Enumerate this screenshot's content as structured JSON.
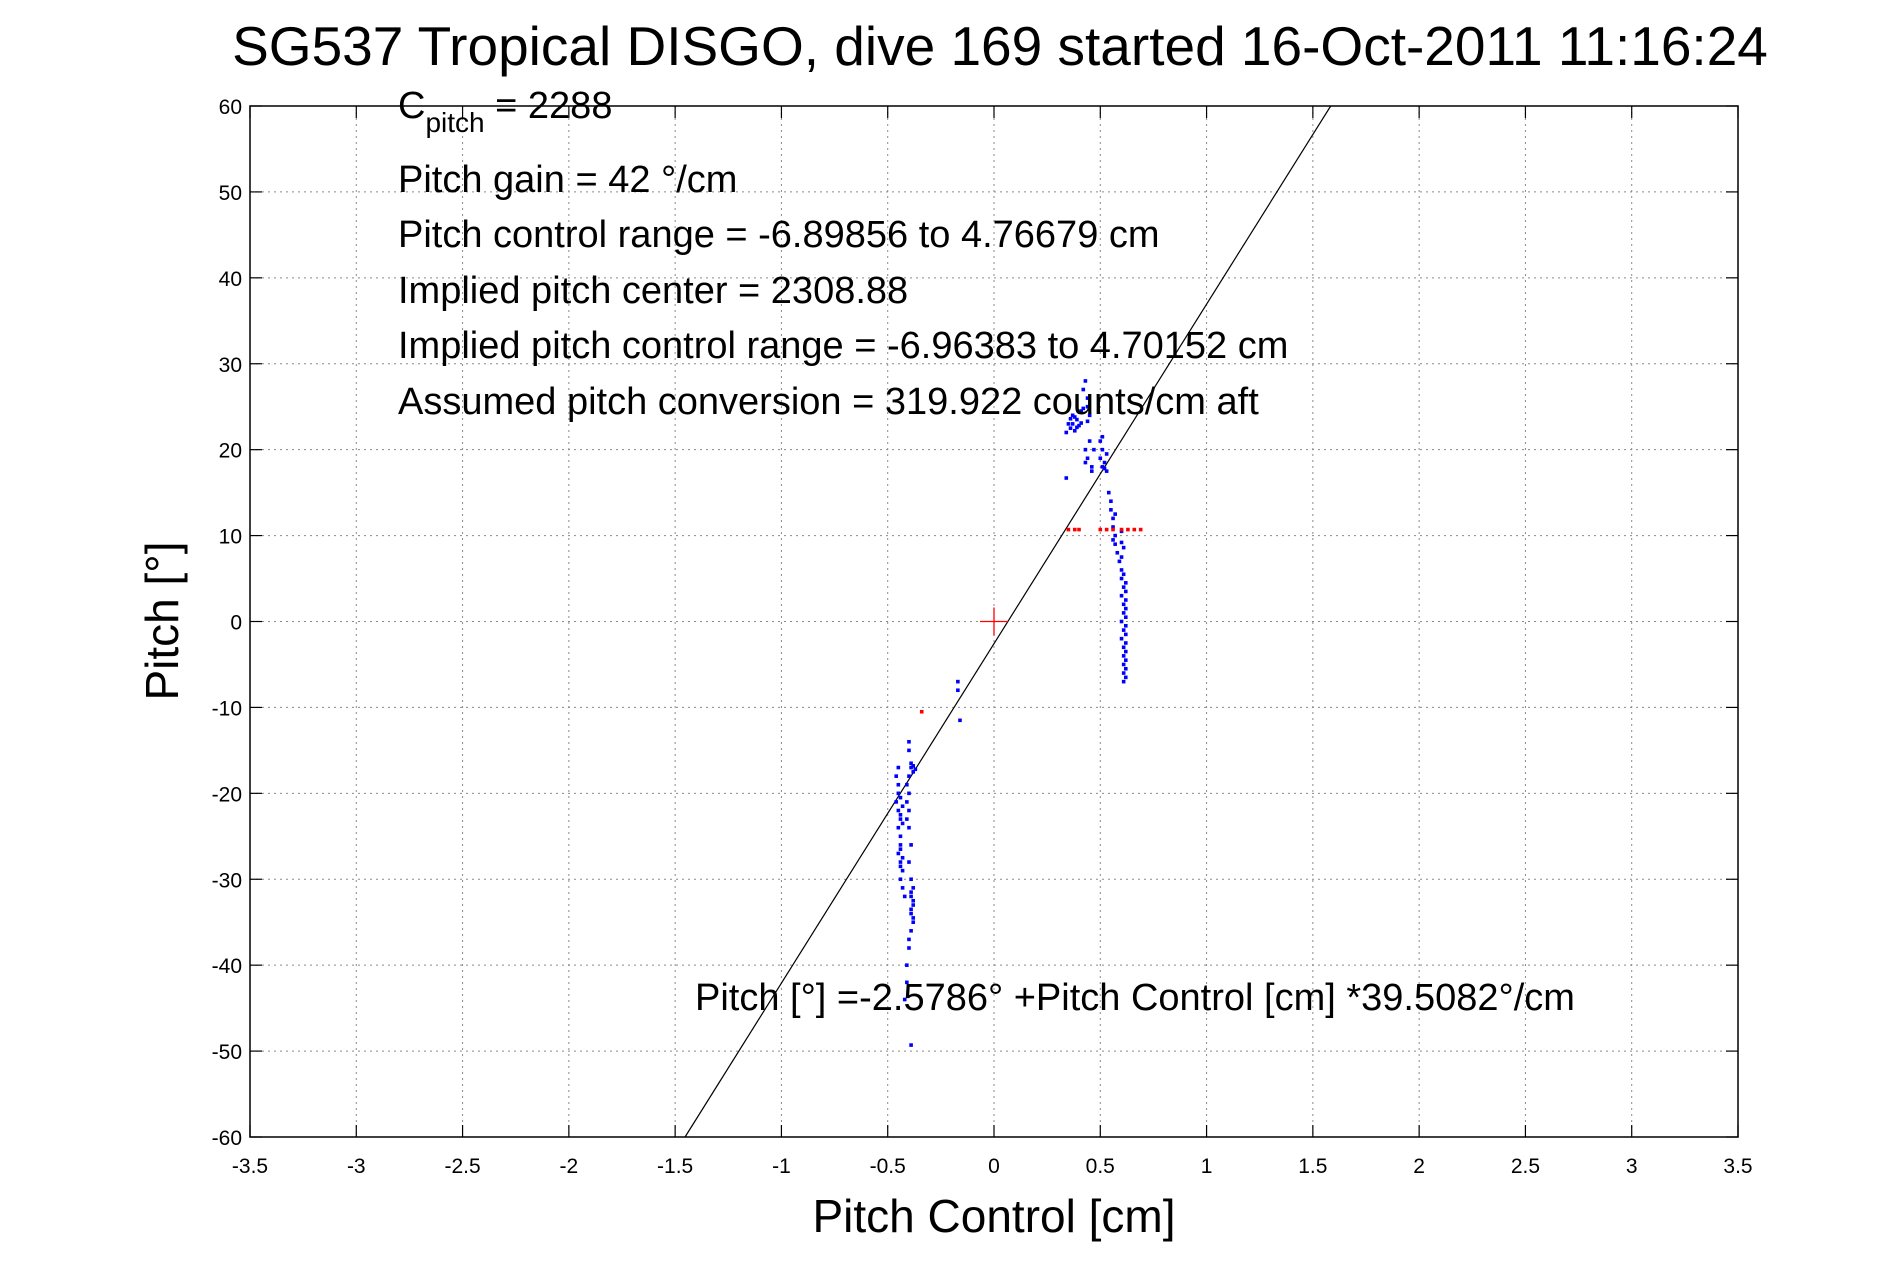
{
  "chart_data": {
    "type": "scatter",
    "title": "SG537 Tropical DISGO, dive 169 started 16-Oct-2011 11:16:24",
    "xlabel": "Pitch Control [cm]",
    "ylabel": "Pitch [°]",
    "xlim": [
      -3.5,
      3.5
    ],
    "ylim": [
      -60,
      60
    ],
    "xticks": [
      -3.5,
      -3,
      -2.5,
      -2,
      -1.5,
      -1,
      -0.5,
      0,
      0.5,
      1,
      1.5,
      2,
      2.5,
      3,
      3.5
    ],
    "yticks": [
      -60,
      -50,
      -40,
      -30,
      -20,
      -10,
      0,
      10,
      20,
      30,
      40,
      50,
      60
    ],
    "xtick_labels": [
      "-3.5",
      "-3",
      "-2.5",
      "-2",
      "-1.5",
      "-1",
      "-0.5",
      "0",
      "0.5",
      "1",
      "1.5",
      "2",
      "2.5",
      "3",
      "3.5"
    ],
    "ytick_labels": [
      "-60",
      "-50",
      "-40",
      "-30",
      "-20",
      "-10",
      "0",
      "10",
      "20",
      "30",
      "40",
      "50",
      "60"
    ],
    "grid": true,
    "annotations": {
      "c_pitch_main": "C",
      "c_pitch_sub": "pitch",
      "c_pitch_value": " = 2288",
      "pitch_gain": "Pitch gain = 42 °/cm",
      "pitch_control_range": "Pitch control range = -6.89856 to 4.76679 cm",
      "implied_pitch_center": "Implied pitch center = 2308.88",
      "implied_pitch_control_range": "Implied pitch control range = -6.96383 to 4.70152 cm",
      "assumed_pitch_conversion": "Assumed pitch conversion = 319.922 counts/cm aft",
      "fit_equation": "Pitch [°] =-2.5786° +Pitch Control [cm] *39.5082°/cm"
    },
    "fit_line": {
      "intercept": -2.5786,
      "slope": 39.5082,
      "color": "#000000"
    },
    "center_marker": {
      "x": 0,
      "y": 0,
      "color": "#ff0000",
      "shape": "plus"
    },
    "series": [
      {
        "color": "#0000ff",
        "points": [
          [
            -0.46,
            -18
          ],
          [
            -0.45,
            -19
          ],
          [
            -0.45,
            -20
          ],
          [
            -0.46,
            -21
          ],
          [
            -0.45,
            -22
          ],
          [
            -0.44,
            -23
          ],
          [
            -0.45,
            -24
          ],
          [
            -0.44,
            -25
          ],
          [
            -0.44,
            -26
          ],
          [
            -0.45,
            -27
          ],
          [
            -0.44,
            -28
          ],
          [
            -0.43,
            -29
          ],
          [
            -0.44,
            -30
          ],
          [
            -0.43,
            -31
          ],
          [
            -0.42,
            -32
          ],
          [
            -0.44,
            -20.5
          ],
          [
            -0.43,
            -21.5
          ],
          [
            -0.44,
            -22.5
          ],
          [
            -0.43,
            -23.5
          ],
          [
            -0.44,
            -26.5
          ],
          [
            -0.43,
            -27.5
          ],
          [
            -0.45,
            -17
          ],
          [
            -0.44,
            -28.5
          ],
          [
            -0.4,
            -14
          ],
          [
            -0.4,
            -15
          ],
          [
            -0.39,
            -16.5
          ],
          [
            -0.39,
            -17
          ],
          [
            -0.4,
            -18
          ],
          [
            -0.41,
            -19
          ],
          [
            -0.4,
            -20
          ],
          [
            -0.41,
            -21
          ],
          [
            -0.4,
            -22
          ],
          [
            -0.41,
            -23
          ],
          [
            -0.4,
            -24
          ],
          [
            -0.39,
            -26
          ],
          [
            -0.4,
            -28
          ],
          [
            -0.39,
            -30
          ],
          [
            -0.38,
            -31
          ],
          [
            -0.39,
            -32
          ],
          [
            -0.38,
            -33
          ],
          [
            -0.39,
            -34
          ],
          [
            -0.38,
            -35
          ],
          [
            -0.39,
            -36
          ],
          [
            -0.4,
            -37
          ],
          [
            -0.4,
            -38
          ],
          [
            -0.41,
            -40
          ],
          [
            -0.41,
            -42
          ],
          [
            -0.42,
            -44
          ],
          [
            -0.39,
            -31.5
          ],
          [
            -0.38,
            -32.5
          ],
          [
            -0.39,
            -33.5
          ],
          [
            -0.38,
            -34.5
          ],
          [
            -0.38,
            -16.8
          ],
          [
            -0.37,
            -17.2
          ],
          [
            -0.38,
            -17.5
          ],
          [
            -0.39,
            -49.3
          ],
          [
            -0.17,
            -7
          ],
          [
            -0.17,
            -8
          ],
          [
            -0.16,
            -11.5
          ],
          [
            0.34,
            16.7
          ],
          [
            0.34,
            22
          ],
          [
            0.35,
            23
          ],
          [
            0.36,
            22.5
          ],
          [
            0.37,
            24
          ],
          [
            0.37,
            23
          ],
          [
            0.38,
            22.2
          ],
          [
            0.39,
            23.5
          ],
          [
            0.4,
            22.8
          ],
          [
            0.41,
            24.5
          ],
          [
            0.42,
            27
          ],
          [
            0.43,
            28
          ],
          [
            0.44,
            26
          ],
          [
            0.44,
            25
          ],
          [
            0.45,
            24
          ],
          [
            0.44,
            23.3
          ],
          [
            0.38,
            23.8
          ],
          [
            0.41,
            23.1
          ],
          [
            0.36,
            23.6
          ],
          [
            0.39,
            22.6
          ],
          [
            0.42,
            24.8
          ],
          [
            0.43,
            20
          ],
          [
            0.44,
            19
          ],
          [
            0.45,
            21
          ],
          [
            0.46,
            18
          ],
          [
            0.47,
            20
          ],
          [
            0.43,
            18.5
          ],
          [
            0.46,
            17.5
          ],
          [
            0.5,
            21
          ],
          [
            0.51,
            20
          ],
          [
            0.5,
            19
          ],
          [
            0.52,
            18.5
          ],
          [
            0.51,
            18
          ],
          [
            0.53,
            17.5
          ],
          [
            0.51,
            21.5
          ],
          [
            0.53,
            19.5
          ],
          [
            0.52,
            17.8
          ],
          [
            0.54,
            15
          ],
          [
            0.55,
            14
          ],
          [
            0.55,
            13
          ],
          [
            0.56,
            12
          ],
          [
            0.56,
            11
          ],
          [
            0.57,
            10
          ],
          [
            0.57,
            9
          ],
          [
            0.58,
            8
          ],
          [
            0.56,
            9.5
          ],
          [
            0.57,
            12.5
          ],
          [
            0.59,
            7
          ],
          [
            0.6,
            6
          ],
          [
            0.6,
            5
          ],
          [
            0.61,
            4
          ],
          [
            0.6,
            3
          ],
          [
            0.61,
            2
          ],
          [
            0.61,
            1
          ],
          [
            0.6,
            0
          ],
          [
            0.61,
            -1
          ],
          [
            0.6,
            -2
          ],
          [
            0.61,
            -3
          ],
          [
            0.61,
            -4
          ],
          [
            0.61,
            -5
          ],
          [
            0.61,
            -6
          ],
          [
            0.61,
            -7
          ],
          [
            0.6,
            10.5
          ],
          [
            0.6,
            9.2
          ],
          [
            0.61,
            8.6
          ],
          [
            0.6,
            7.5
          ],
          [
            0.61,
            5.5
          ],
          [
            0.62,
            4.5
          ],
          [
            0.62,
            3.5
          ],
          [
            0.62,
            2.5
          ],
          [
            0.62,
            1.5
          ],
          [
            0.62,
            0.5
          ],
          [
            0.62,
            -0.5
          ],
          [
            0.62,
            -1.5
          ],
          [
            0.62,
            -2.5
          ],
          [
            0.62,
            -3.5
          ],
          [
            0.62,
            -4.5
          ],
          [
            0.62,
            -5.5
          ],
          [
            0.62,
            -6.5
          ]
        ]
      },
      {
        "color": "#ff0000",
        "points": [
          [
            -0.34,
            -10.5
          ],
          [
            0.35,
            10.7
          ],
          [
            0.38,
            10.7
          ],
          [
            0.4,
            10.7
          ],
          [
            0.5,
            10.7
          ],
          [
            0.53,
            10.7
          ],
          [
            0.56,
            10.7
          ],
          [
            0.6,
            10.7
          ],
          [
            0.63,
            10.7
          ],
          [
            0.66,
            10.7
          ],
          [
            0.69,
            10.7
          ]
        ]
      }
    ]
  }
}
